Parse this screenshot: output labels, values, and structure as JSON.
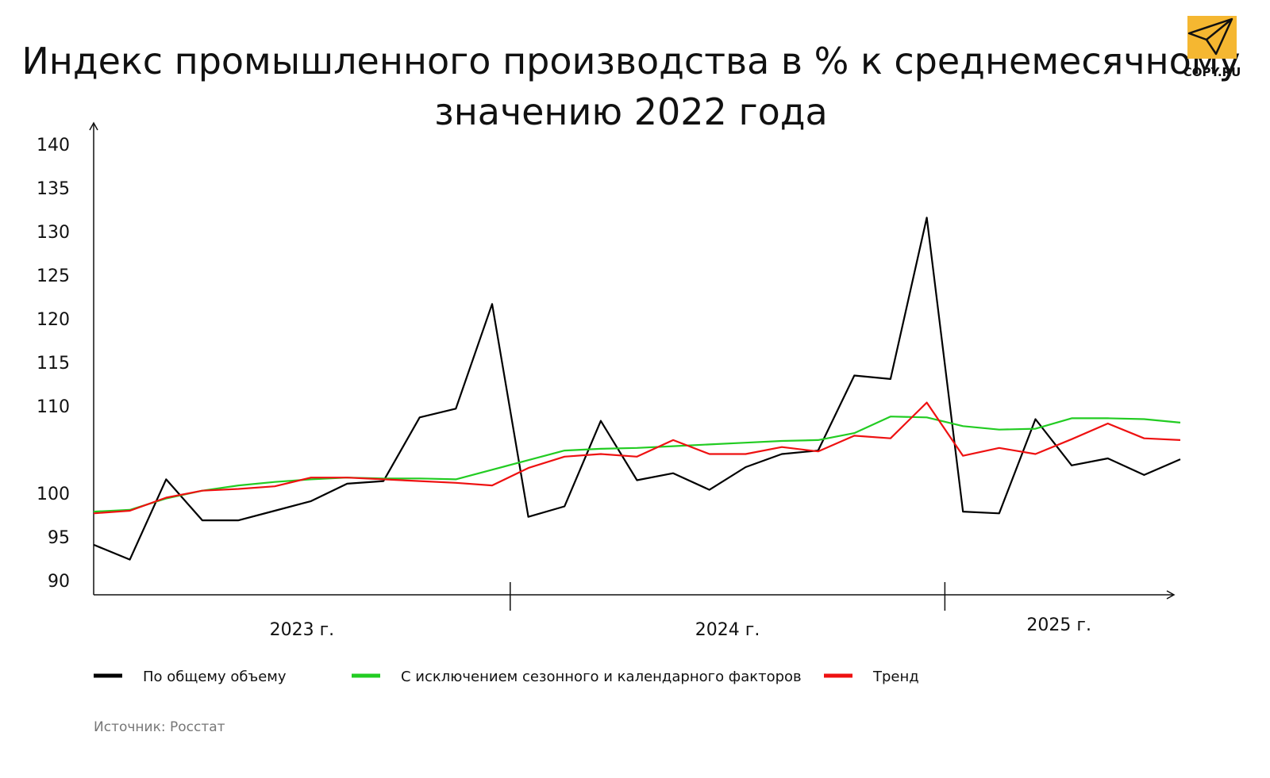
{
  "chart_data": {
    "type": "line",
    "title_line1": "Индекс промышленного производства в % к среднемесячному",
    "title_line2": "значению 2022 года",
    "ylim": [
      90,
      140
    ],
    "yticks": [
      90,
      95,
      100,
      105,
      110,
      115,
      120,
      125,
      130,
      135,
      140
    ],
    "ytick_labels": [
      "90",
      "95",
      "100",
      "",
      "110",
      "115",
      "120",
      "125",
      "130",
      "135",
      "140"
    ],
    "x": [
      "2023-01",
      "2023-02",
      "2023-03",
      "2023-04",
      "2023-05",
      "2023-06",
      "2023-07",
      "2023-08",
      "2023-09",
      "2023-10",
      "2023-11",
      "2023-12",
      "2024-01",
      "2024-02",
      "2024-03",
      "2024-04",
      "2024-05",
      "2024-06",
      "2024-07",
      "2024-08",
      "2024-09",
      "2024-10",
      "2024-11",
      "2024-12",
      "2025-01",
      "2025-02",
      "2025-03",
      "2025-04",
      "2025-05",
      "2025-06",
      "2025-07"
    ],
    "year_groups": [
      {
        "label": "2023 г.",
        "months": 12
      },
      {
        "label": "2024 г.",
        "months": 12
      },
      {
        "label": "2025 г.",
        "months": 7
      }
    ],
    "series": [
      {
        "name": "По общему объему",
        "color": "#000000",
        "values": [
          94.1,
          92.4,
          101.6,
          96.9,
          96.9,
          98.0,
          99.1,
          101.1,
          101.4,
          108.7,
          109.7,
          121.7,
          97.3,
          98.5,
          108.3,
          101.5,
          102.3,
          100.4,
          103.0,
          104.5,
          104.9,
          113.5,
          113.1,
          131.6,
          97.9,
          97.7,
          108.5,
          103.2,
          104.0,
          102.1,
          103.9
        ]
      },
      {
        "name": "С исключением сезонного и календарного факторов",
        "color": "#22cc22",
        "values": [
          97.9,
          98.1,
          99.4,
          100.3,
          100.9,
          101.3,
          101.6,
          101.8,
          101.7,
          101.7,
          101.6,
          102.7,
          103.8,
          104.9,
          105.1,
          105.2,
          105.4,
          105.6,
          105.8,
          106.0,
          106.1,
          106.9,
          108.8,
          108.7,
          107.7,
          107.3,
          107.4,
          108.6,
          108.6,
          108.5,
          108.1
        ]
      },
      {
        "name": "Тренд",
        "color": "#ee1111",
        "values": [
          97.7,
          98.0,
          99.5,
          100.3,
          100.5,
          100.8,
          101.8,
          101.8,
          101.6,
          101.4,
          101.2,
          100.9,
          102.9,
          104.2,
          104.5,
          104.2,
          106.1,
          104.5,
          104.5,
          105.3,
          104.8,
          106.6,
          106.3,
          110.4,
          104.3,
          105.2,
          104.5,
          106.2,
          108.0,
          106.3,
          106.1
        ]
      }
    ]
  },
  "source": "Источник: Росстат",
  "logo": {
    "text": "COPY.RU",
    "accent": "#f5b731"
  }
}
